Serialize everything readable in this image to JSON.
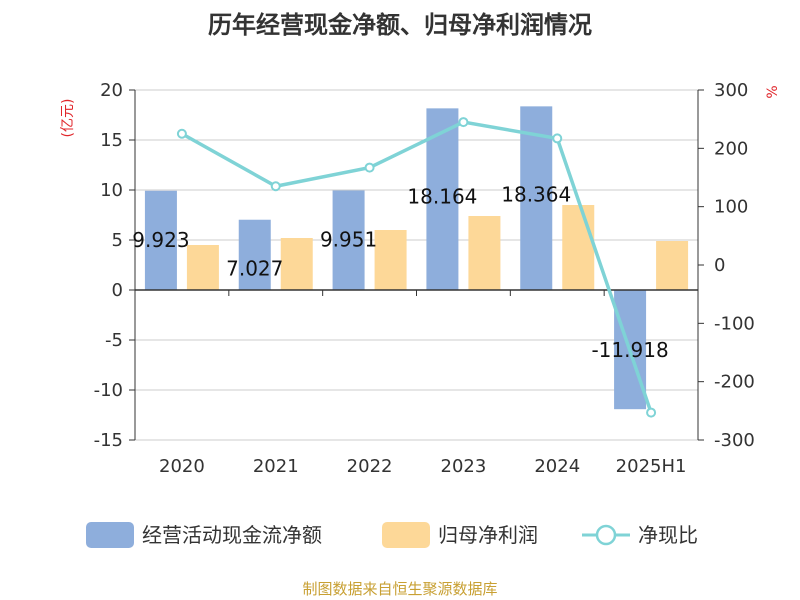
{
  "chart_data": {
    "type": "bar",
    "title": "历年经营现金净额、归母净利润情况",
    "categories": [
      "2020",
      "2021",
      "2022",
      "2023",
      "2024",
      "2025H1"
    ],
    "y_left": {
      "unit": "(亿元)",
      "ticks": [
        "20",
        "15",
        "10",
        "5",
        "0",
        "-5",
        "-10",
        "-15"
      ],
      "range": [
        -15,
        20
      ]
    },
    "y_right": {
      "unit": "%",
      "ticks": [
        "300",
        "200",
        "100",
        "0",
        "-100",
        "-200",
        "-300"
      ],
      "range": [
        -300,
        300
      ]
    },
    "series": [
      {
        "name": "经营活动现金流净额",
        "type": "bar",
        "axis": "left",
        "color": "#8eaedc",
        "values": [
          9.923,
          7.027,
          9.951,
          18.164,
          18.364,
          -11.918
        ],
        "labels": [
          "9.923",
          "7.027",
          "9.951",
          "18.164",
          "18.364",
          "-11.918"
        ]
      },
      {
        "name": "归母净利润",
        "type": "bar",
        "axis": "left",
        "color": "#fdd898",
        "values": [
          4.5,
          5.2,
          6.0,
          7.4,
          8.5,
          4.9
        ]
      },
      {
        "name": "净现比",
        "type": "line",
        "axis": "right",
        "color": "#7fd3d6",
        "values": [
          225,
          135,
          167,
          245,
          217,
          -253
        ]
      }
    ],
    "legend": {
      "position": "bottom"
    },
    "grid": true
  },
  "source": "制图数据来自恒生聚源数据库"
}
